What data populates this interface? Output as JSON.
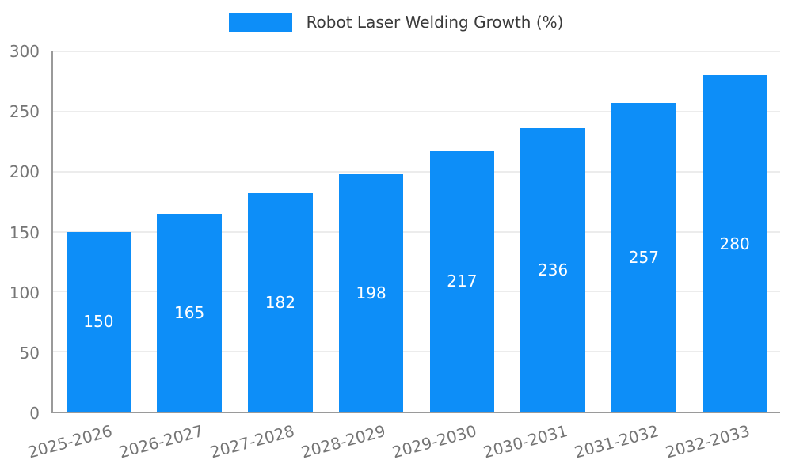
{
  "chart_data": {
    "type": "bar",
    "title": "Robot Laser Welding Growth (%)",
    "xlabel": "",
    "ylabel": "",
    "categories": [
      "2025-2026",
      "2026-2027",
      "2027-2028",
      "2028-2029",
      "2029-2030",
      "2030-2031",
      "2031-2032",
      "2032-2033"
    ],
    "values": [
      150,
      165,
      182,
      198,
      217,
      236,
      257,
      280
    ],
    "ylim": [
      0,
      300
    ],
    "yticks": [
      0,
      50,
      100,
      150,
      200,
      250,
      300
    ],
    "grid": true,
    "legend_position": "top-center",
    "colors": {
      "bar": "#0d8ef8",
      "value_label": "#ffffff",
      "tick_label": "#757575",
      "legend_text": "#3a3a3a",
      "gridline": "#d9d9d9",
      "axis_line": "#9a9a9a",
      "background": "#ffffff"
    }
  }
}
